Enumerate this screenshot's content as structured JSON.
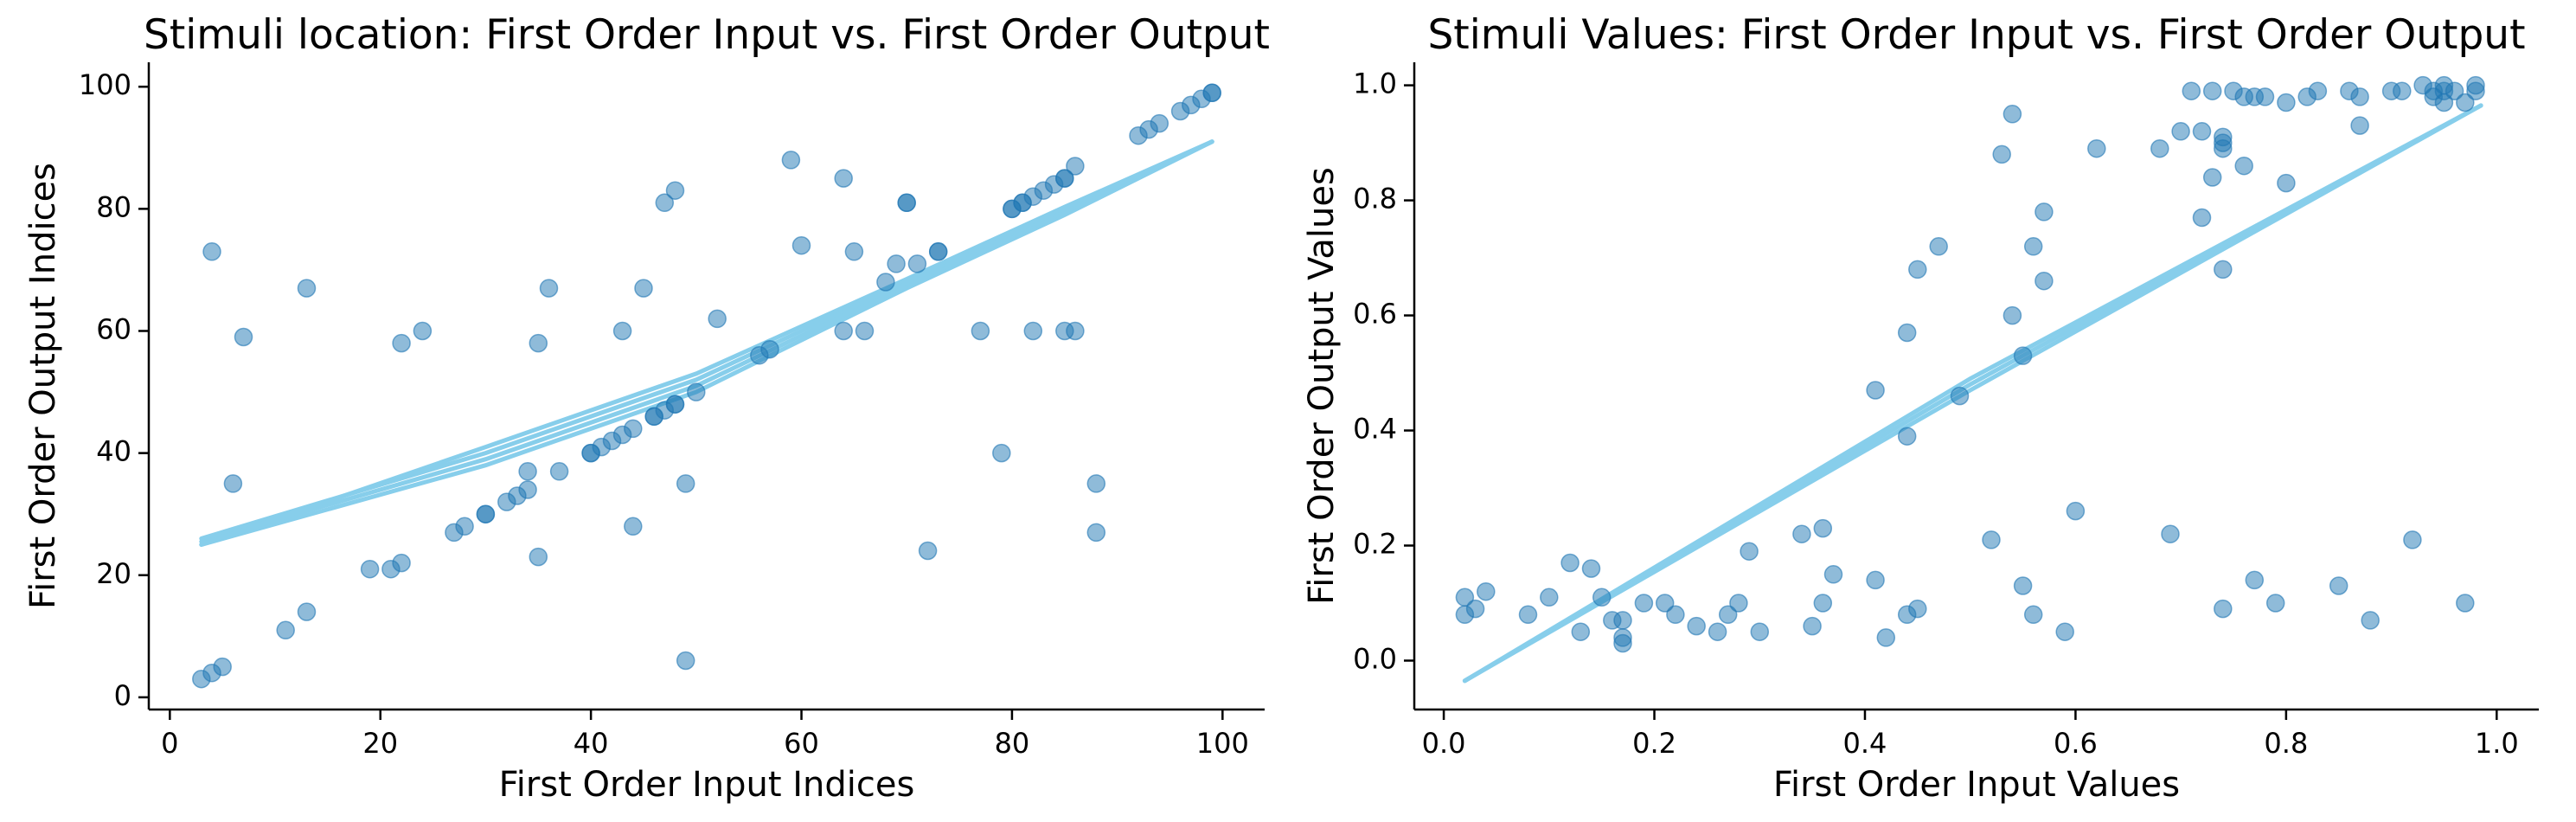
{
  "chart_data": [
    {
      "type": "scatter",
      "title": "Stimuli location: First Order Input vs. First Order Output",
      "xlabel": "First Order Input Indices",
      "ylabel": "First Order Output Indices",
      "xlim": [
        -2,
        104
      ],
      "ylim": [
        -2,
        104
      ],
      "xticks": [
        0,
        20,
        40,
        60,
        80,
        100
      ],
      "yticks": [
        0,
        20,
        40,
        60,
        80,
        100
      ],
      "grid": false,
      "point_color": "#1f77b4",
      "trend_color": "#87ceeb",
      "points": [
        [
          3,
          3
        ],
        [
          4,
          4
        ],
        [
          5,
          5
        ],
        [
          4,
          73
        ],
        [
          6,
          35
        ],
        [
          7,
          59
        ],
        [
          11,
          11
        ],
        [
          13,
          14
        ],
        [
          13,
          67
        ],
        [
          19,
          21
        ],
        [
          21,
          21
        ],
        [
          22,
          22
        ],
        [
          22,
          58
        ],
        [
          24,
          60
        ],
        [
          27,
          27
        ],
        [
          28,
          28
        ],
        [
          30,
          30
        ],
        [
          30,
          30
        ],
        [
          32,
          32
        ],
        [
          33,
          33
        ],
        [
          34,
          34
        ],
        [
          34,
          37
        ],
        [
          35,
          23
        ],
        [
          35,
          58
        ],
        [
          36,
          67
        ],
        [
          37,
          37
        ],
        [
          40,
          40
        ],
        [
          40,
          40
        ],
        [
          41,
          41
        ],
        [
          42,
          42
        ],
        [
          43,
          43
        ],
        [
          43,
          60
        ],
        [
          44,
          44
        ],
        [
          44,
          28
        ],
        [
          45,
          67
        ],
        [
          46,
          46
        ],
        [
          46,
          46
        ],
        [
          47,
          47
        ],
        [
          47,
          81
        ],
        [
          48,
          48
        ],
        [
          48,
          48
        ],
        [
          48,
          83
        ],
        [
          49,
          35
        ],
        [
          49,
          6
        ],
        [
          50,
          50
        ],
        [
          52,
          62
        ],
        [
          56,
          56
        ],
        [
          57,
          57
        ],
        [
          59,
          88
        ],
        [
          60,
          74
        ],
        [
          64,
          85
        ],
        [
          64,
          60
        ],
        [
          65,
          73
        ],
        [
          66,
          60
        ],
        [
          68,
          68
        ],
        [
          69,
          71
        ],
        [
          70,
          81
        ],
        [
          70,
          81
        ],
        [
          71,
          71
        ],
        [
          72,
          24
        ],
        [
          73,
          73
        ],
        [
          73,
          73
        ],
        [
          77,
          60
        ],
        [
          79,
          40
        ],
        [
          80,
          80
        ],
        [
          80,
          80
        ],
        [
          81,
          81
        ],
        [
          81,
          81
        ],
        [
          82,
          82
        ],
        [
          82,
          60
        ],
        [
          83,
          83
        ],
        [
          84,
          84
        ],
        [
          85,
          85
        ],
        [
          85,
          85
        ],
        [
          85,
          60
        ],
        [
          86,
          60
        ],
        [
          86,
          87
        ],
        [
          88,
          35
        ],
        [
          88,
          27
        ],
        [
          92,
          92
        ],
        [
          93,
          93
        ],
        [
          94,
          94
        ],
        [
          96,
          96
        ],
        [
          97,
          97
        ],
        [
          98,
          98
        ],
        [
          99,
          99
        ],
        [
          99,
          99
        ]
      ],
      "trend_paths": [
        [
          [
            3,
            25
          ],
          [
            30,
            38
          ],
          [
            50,
            50
          ],
          [
            70,
            67
          ],
          [
            85,
            79
          ],
          [
            99,
            91
          ]
        ],
        [
          [
            3,
            25.5
          ],
          [
            30,
            39
          ],
          [
            50,
            51
          ],
          [
            70,
            67.5
          ],
          [
            85,
            79.5
          ],
          [
            99,
            91
          ]
        ],
        [
          [
            3,
            26
          ],
          [
            30,
            40
          ],
          [
            50,
            52
          ],
          [
            70,
            68
          ],
          [
            85,
            80
          ],
          [
            99,
            91
          ]
        ],
        [
          [
            3,
            25
          ],
          [
            30,
            41
          ],
          [
            50,
            53
          ],
          [
            70,
            68.5
          ],
          [
            85,
            80.3
          ],
          [
            99,
            91
          ]
        ]
      ]
    },
    {
      "type": "scatter",
      "title": "Stimuli Values: First Order Input vs. First Order Output",
      "xlabel": "First Order Input Values",
      "ylabel": "First Order Output Values",
      "xlim": [
        -0.028,
        1.04
      ],
      "ylim": [
        -0.085,
        1.04
      ],
      "xticks": [
        0.0,
        0.2,
        0.4,
        0.6,
        0.8,
        1.0
      ],
      "yticks": [
        0.0,
        0.2,
        0.4,
        0.6,
        0.8,
        1.0
      ],
      "tick_decimals": 1,
      "grid": false,
      "point_color": "#1f77b4",
      "trend_color": "#87ceeb",
      "points": [
        [
          0.02,
          0.11
        ],
        [
          0.02,
          0.08
        ],
        [
          0.03,
          0.09
        ],
        [
          0.04,
          0.12
        ],
        [
          0.1,
          0.11
        ],
        [
          0.08,
          0.08
        ],
        [
          0.12,
          0.17
        ],
        [
          0.13,
          0.05
        ],
        [
          0.14,
          0.16
        ],
        [
          0.15,
          0.11
        ],
        [
          0.16,
          0.07
        ],
        [
          0.17,
          0.07
        ],
        [
          0.17,
          0.04
        ],
        [
          0.17,
          0.03
        ],
        [
          0.19,
          0.1
        ],
        [
          0.21,
          0.1
        ],
        [
          0.22,
          0.08
        ],
        [
          0.24,
          0.06
        ],
        [
          0.26,
          0.05
        ],
        [
          0.27,
          0.08
        ],
        [
          0.28,
          0.1
        ],
        [
          0.29,
          0.19
        ],
        [
          0.3,
          0.05
        ],
        [
          0.34,
          0.22
        ],
        [
          0.35,
          0.06
        ],
        [
          0.36,
          0.23
        ],
        [
          0.36,
          0.1
        ],
        [
          0.37,
          0.15
        ],
        [
          0.41,
          0.14
        ],
        [
          0.41,
          0.47
        ],
        [
          0.42,
          0.04
        ],
        [
          0.44,
          0.08
        ],
        [
          0.44,
          0.57
        ],
        [
          0.44,
          0.39
        ],
        [
          0.45,
          0.09
        ],
        [
          0.45,
          0.68
        ],
        [
          0.47,
          0.72
        ],
        [
          0.49,
          0.46
        ],
        [
          0.52,
          0.21
        ],
        [
          0.53,
          0.88
        ],
        [
          0.54,
          0.95
        ],
        [
          0.54,
          0.6
        ],
        [
          0.55,
          0.13
        ],
        [
          0.55,
          0.53
        ],
        [
          0.56,
          0.72
        ],
        [
          0.56,
          0.08
        ],
        [
          0.57,
          0.78
        ],
        [
          0.57,
          0.66
        ],
        [
          0.59,
          0.05
        ],
        [
          0.6,
          0.26
        ],
        [
          0.62,
          0.89
        ],
        [
          0.68,
          0.89
        ],
        [
          0.69,
          0.22
        ],
        [
          0.7,
          0.92
        ],
        [
          0.71,
          0.99
        ],
        [
          0.72,
          0.92
        ],
        [
          0.72,
          0.77
        ],
        [
          0.73,
          0.84
        ],
        [
          0.73,
          0.99
        ],
        [
          0.74,
          0.68
        ],
        [
          0.74,
          0.9
        ],
        [
          0.74,
          0.89
        ],
        [
          0.74,
          0.09
        ],
        [
          0.74,
          0.91
        ],
        [
          0.75,
          0.99
        ],
        [
          0.76,
          0.86
        ],
        [
          0.76,
          0.98
        ],
        [
          0.77,
          0.98
        ],
        [
          0.77,
          0.14
        ],
        [
          0.78,
          0.98
        ],
        [
          0.79,
          0.1
        ],
        [
          0.8,
          0.83
        ],
        [
          0.8,
          0.97
        ],
        [
          0.82,
          0.98
        ],
        [
          0.83,
          0.99
        ],
        [
          0.85,
          0.13
        ],
        [
          0.86,
          0.99
        ],
        [
          0.87,
          0.98
        ],
        [
          0.87,
          0.93
        ],
        [
          0.88,
          0.07
        ],
        [
          0.9,
          0.99
        ],
        [
          0.91,
          0.99
        ],
        [
          0.92,
          0.21
        ],
        [
          0.93,
          1.0
        ],
        [
          0.94,
          0.99
        ],
        [
          0.94,
          0.98
        ],
        [
          0.95,
          0.97
        ],
        [
          0.95,
          0.99
        ],
        [
          0.95,
          1.0
        ],
        [
          0.96,
          0.99
        ],
        [
          0.97,
          0.97
        ],
        [
          0.97,
          0.1
        ],
        [
          0.98,
          0.99
        ],
        [
          0.98,
          1.0
        ]
      ],
      "trend_paths": [
        [
          [
            0.02,
            -0.035
          ],
          [
            0.5,
            0.47
          ],
          [
            0.985,
            0.965
          ]
        ],
        [
          [
            0.02,
            -0.035
          ],
          [
            0.5,
            0.48
          ],
          [
            0.985,
            0.965
          ]
        ],
        [
          [
            0.02,
            -0.035
          ],
          [
            0.5,
            0.49
          ],
          [
            0.985,
            0.965
          ]
        ]
      ]
    }
  ]
}
